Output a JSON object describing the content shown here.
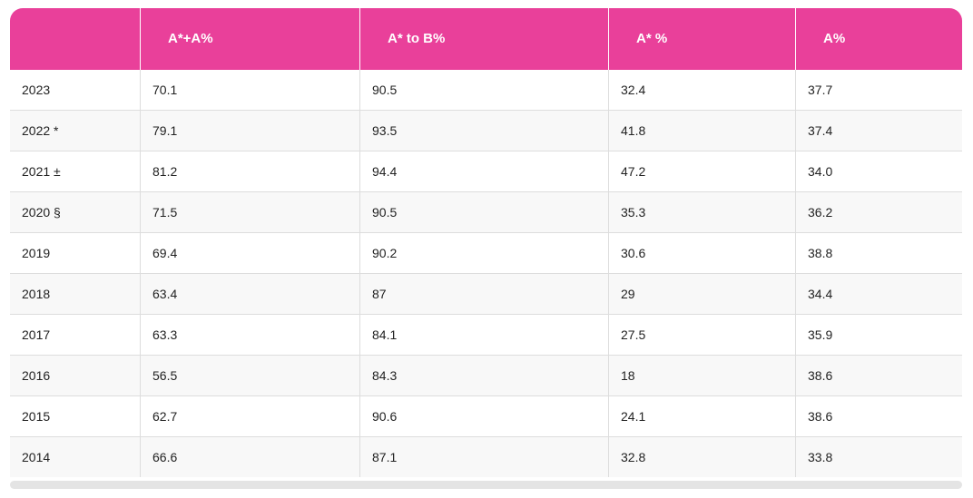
{
  "table": {
    "headers": [
      "",
      "A*+A%",
      "A* to B%",
      "A* %",
      "A%"
    ],
    "rows": [
      [
        "2023",
        "70.1",
        "90.5",
        "32.4",
        "37.7"
      ],
      [
        "2022 *",
        "79.1",
        "93.5",
        "41.8",
        "37.4"
      ],
      [
        "2021 ±",
        "81.2",
        "94.4",
        "47.2",
        "34.0"
      ],
      [
        "2020 §",
        "71.5",
        "90.5",
        "35.3",
        "36.2"
      ],
      [
        "2019",
        "69.4",
        "90.2",
        "30.6",
        "38.8"
      ],
      [
        "2018",
        "63.4",
        "87",
        "29",
        "34.4"
      ],
      [
        "2017",
        "63.3",
        "84.1",
        "27.5",
        "35.9"
      ],
      [
        "2016",
        "56.5",
        "84.3",
        "18",
        "38.6"
      ],
      [
        "2015",
        "62.7",
        "90.6",
        "24.1",
        "38.6"
      ],
      [
        "2014",
        "66.6",
        "87.1",
        "32.8",
        "33.8"
      ]
    ]
  },
  "colors": {
    "header_bg": "#e9409a",
    "header_text": "#ffffff"
  }
}
